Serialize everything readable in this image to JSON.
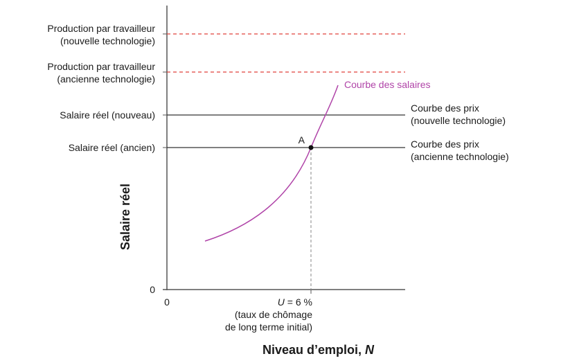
{
  "colors": {
    "axis": "#555555",
    "price_line": "#333333",
    "productivity_line": "#e0413a",
    "wage_curve": "#b044a8",
    "guide": "#999999"
  },
  "axes": {
    "y_title": "Salaire réel",
    "x_title": "Niveau d’emploi, ",
    "x_title_var": "N",
    "y_zero": "0",
    "x_zero": "0"
  },
  "y_labels": {
    "prod_new_1": "Production par travailleur",
    "prod_new_2": "(nouvelle technologie)",
    "prod_old_1": "Production par travailleur",
    "prod_old_2": "(ancienne technologie)",
    "wage_new": "Salaire réel (nouveau)",
    "wage_old": "Salaire réel (ancien)"
  },
  "right_labels": {
    "price_new_1": "Courbe des prix",
    "price_new_2": "(nouvelle technologie)",
    "price_old_1": "Courbe des prix",
    "price_old_2": "(ancienne technologie)"
  },
  "curve_label": "Courbe des salaires",
  "point_label": "A",
  "x_marker": {
    "var": "U",
    "value": " = 6 %",
    "note_1": "(taux de chômage",
    "note_2": "de long terme initial)"
  }
}
